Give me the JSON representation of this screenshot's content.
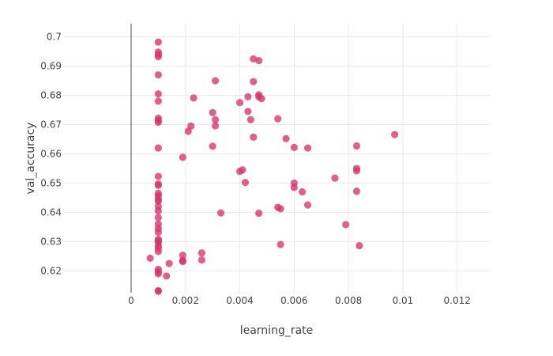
{
  "chart_data": {
    "type": "scatter",
    "xlabel": "learning_rate",
    "ylabel": "val_accuracy",
    "xlim": [
      -0.0025,
      0.0132
    ],
    "ylim": [
      0.6125,
      0.7045
    ],
    "x_ticks": [
      0,
      0.002,
      0.004,
      0.006,
      0.008,
      0.01,
      0.012
    ],
    "x_tick_labels": [
      "0",
      "0.002",
      "0.004",
      "0.006",
      "0.008",
      "0.01",
      "0.012"
    ],
    "y_ticks": [
      0.62,
      0.63,
      0.64,
      0.65,
      0.66,
      0.67,
      0.68,
      0.69,
      0.7
    ],
    "y_tick_labels": [
      "0.62",
      "0.63",
      "0.64",
      "0.65",
      "0.66",
      "0.67",
      "0.68",
      "0.69",
      "0.7"
    ],
    "grid": true,
    "marker_color": "#d6336c",
    "marker_opacity": 0.78,
    "x": [
      0.001,
      0.001,
      0.001,
      0.001,
      0.001,
      0.001,
      0.001,
      0.001,
      0.001,
      0.001,
      0.001,
      0.001,
      0.001,
      0.001,
      0.001,
      0.001,
      0.001,
      0.001,
      0.001,
      0.001,
      0.001,
      0.001,
      0.001,
      0.001,
      0.001,
      0.001,
      0.001,
      0.001,
      0.001,
      0.001,
      0.001,
      0.001,
      0.001,
      0.001,
      0.001,
      0.0007,
      0.0013,
      0.0014,
      0.0019,
      0.0019,
      0.0019,
      0.0019,
      0.0021,
      0.0022,
      0.0023,
      0.0026,
      0.0026,
      0.003,
      0.003,
      0.0031,
      0.0031,
      0.0031,
      0.0033,
      0.004,
      0.004,
      0.0041,
      0.0042,
      0.0043,
      0.0043,
      0.0044,
      0.0045,
      0.0045,
      0.0045,
      0.0047,
      0.0047,
      0.0047,
      0.0047,
      0.0048,
      0.0054,
      0.0054,
      0.0055,
      0.0055,
      0.0057,
      0.006,
      0.006,
      0.006,
      0.0063,
      0.0065,
      0.0065,
      0.0075,
      0.0079,
      0.0083,
      0.0083,
      0.0083,
      0.0083,
      0.0084,
      0.0097
    ],
    "y": [
      0.6982,
      0.6948,
      0.694,
      0.6932,
      0.687,
      0.6805,
      0.678,
      0.6722,
      0.6715,
      0.6708,
      0.662,
      0.6523,
      0.6497,
      0.6492,
      0.6465,
      0.6457,
      0.6445,
      0.6438,
      0.642,
      0.6405,
      0.6382,
      0.636,
      0.6345,
      0.6332,
      0.6308,
      0.6302,
      0.6297,
      0.6285,
      0.6278,
      0.6266,
      0.6205,
      0.6196,
      0.619,
      0.6132,
      0.613,
      0.6243,
      0.6182,
      0.6225,
      0.6588,
      0.6253,
      0.6235,
      0.6232,
      0.6677,
      0.6695,
      0.6791,
      0.6261,
      0.6237,
      0.6741,
      0.6626,
      0.685,
      0.6717,
      0.6696,
      0.6398,
      0.6775,
      0.654,
      0.6545,
      0.6502,
      0.6795,
      0.6745,
      0.6717,
      0.6925,
      0.6847,
      0.6657,
      0.6919,
      0.6802,
      0.6795,
      0.6397,
      0.6789,
      0.672,
      0.6417,
      0.6412,
      0.629,
      0.6652,
      0.6622,
      0.65,
      0.6485,
      0.647,
      0.662,
      0.6425,
      0.6517,
      0.6358,
      0.6627,
      0.655,
      0.6542,
      0.6472,
      0.6286,
      0.6666
    ]
  }
}
